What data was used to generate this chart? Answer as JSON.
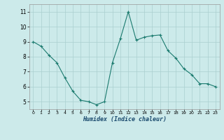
{
  "x": [
    0,
    1,
    2,
    3,
    4,
    5,
    6,
    7,
    8,
    9,
    10,
    11,
    12,
    13,
    14,
    15,
    16,
    17,
    18,
    19,
    20,
    21,
    22,
    23
  ],
  "y": [
    9.0,
    8.7,
    8.1,
    7.6,
    6.6,
    5.7,
    5.1,
    5.0,
    4.8,
    5.0,
    7.6,
    9.2,
    11.0,
    9.1,
    9.3,
    9.4,
    9.45,
    8.4,
    7.9,
    7.2,
    6.8,
    6.2,
    6.2,
    6.0
  ],
  "xlabel": "Humidex (Indice chaleur)",
  "ylim": [
    4.5,
    11.5
  ],
  "xlim": [
    -0.5,
    23.5
  ],
  "yticks": [
    5,
    6,
    7,
    8,
    9,
    10,
    11
  ],
  "xticks": [
    0,
    1,
    2,
    3,
    4,
    5,
    6,
    7,
    8,
    9,
    10,
    11,
    12,
    13,
    14,
    15,
    16,
    17,
    18,
    19,
    20,
    21,
    22,
    23
  ],
  "line_color": "#1a7a6e",
  "marker": "+",
  "bg_color": "#cceaea",
  "grid_color": "#aacfcf",
  "title": ""
}
